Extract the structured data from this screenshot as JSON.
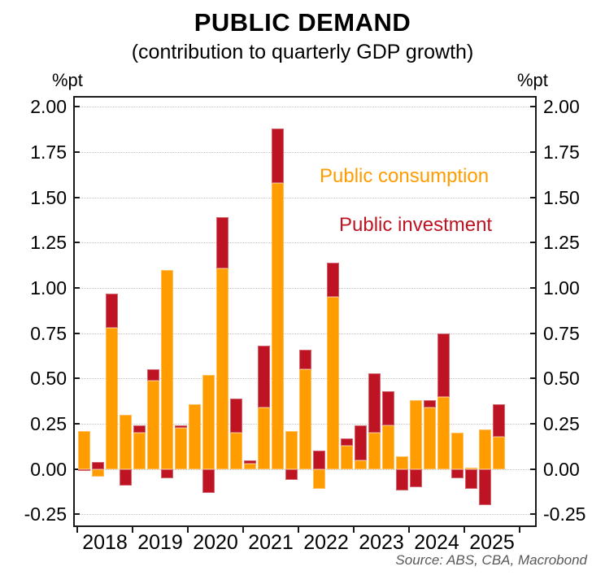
{
  "title": "PUBLIC DEMAND",
  "subtitle": "(contribution to quarterly GDP growth)",
  "unit_left": "%pt",
  "unit_right": "%pt",
  "source": "Source: ABS, CBA, Macrobond",
  "colors": {
    "consumption": "#FF9C00",
    "investment": "#BE1322",
    "frame": "#1a1a1a",
    "gridline": "#c4c4c4",
    "source_text": "#595959"
  },
  "legend": [
    {
      "label": "Public consumption",
      "color": "#FF9C00"
    },
    {
      "label": "Public investment",
      "color": "#BE1322"
    }
  ],
  "chart_data": {
    "type": "bar",
    "stacked": true,
    "title": "PUBLIC DEMAND",
    "subtitle": "(contribution to quarterly GDP growth)",
    "ylabel": "%pt",
    "ylim": [
      -0.32,
      2.06
    ],
    "grid": "horizontal-dotted",
    "legend_position": "inside-top-right",
    "x": [
      "2018 Q1",
      "2018 Q2",
      "2018 Q3",
      "2018 Q4",
      "2019 Q1",
      "2019 Q2",
      "2019 Q3",
      "2019 Q4",
      "2020 Q1",
      "2020 Q2",
      "2020 Q3",
      "2020 Q4",
      "2021 Q1",
      "2021 Q2",
      "2021 Q3",
      "2021 Q4",
      "2022 Q1",
      "2022 Q2",
      "2022 Q3",
      "2022 Q4",
      "2023 Q1",
      "2023 Q2",
      "2023 Q3",
      "2023 Q4",
      "2024 Q1",
      "2024 Q2",
      "2024 Q3",
      "2024 Q4",
      "2025 Q1",
      "2025 Q2",
      "2025 Q3"
    ],
    "year_labels": [
      "2018",
      "2019",
      "2020",
      "2021",
      "2022",
      "2023",
      "2024",
      "2025"
    ],
    "series": [
      {
        "name": "Public consumption",
        "color": "#FF9C00",
        "values": [
          0.21,
          -0.04,
          0.78,
          0.3,
          0.2,
          0.49,
          1.1,
          0.23,
          0.36,
          0.52,
          1.11,
          0.2,
          0.03,
          0.34,
          1.58,
          0.21,
          0.55,
          -0.11,
          0.95,
          0.13,
          0.05,
          0.2,
          0.24,
          0.07,
          0.38,
          0.34,
          0.4,
          0.2,
          0.01,
          0.22,
          0.18
        ]
      },
      {
        "name": "Public investment",
        "color": "#BE1322",
        "values": [
          -0.01,
          0.04,
          0.19,
          -0.09,
          0.04,
          0.06,
          -0.05,
          0.01,
          0.0,
          -0.13,
          0.28,
          0.19,
          0.02,
          0.34,
          0.3,
          -0.06,
          0.11,
          0.1,
          0.19,
          0.04,
          0.19,
          0.33,
          0.19,
          -0.12,
          -0.1,
          0.04,
          0.35,
          -0.05,
          -0.11,
          -0.2,
          0.18
        ]
      }
    ],
    "yticks": [
      {
        "v": 2.0,
        "label": "2.00"
      },
      {
        "v": 1.75,
        "label": "1.75"
      },
      {
        "v": 1.5,
        "label": "1.50"
      },
      {
        "v": 1.25,
        "label": "1.25"
      },
      {
        "v": 1.0,
        "label": "1.00"
      },
      {
        "v": 0.75,
        "label": "0.75"
      },
      {
        "v": 0.5,
        "label": "0.50"
      },
      {
        "v": 0.25,
        "label": "0.25"
      },
      {
        "v": 0.0,
        "label": "0.00"
      },
      {
        "v": -0.25,
        "label": "-0.25"
      }
    ]
  }
}
